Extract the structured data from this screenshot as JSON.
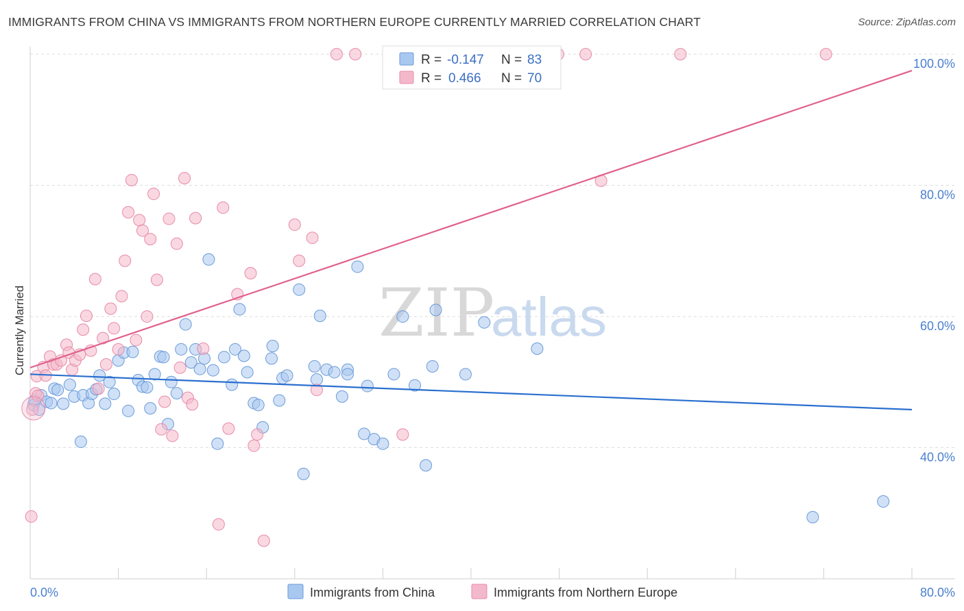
{
  "header": {
    "title": "IMMIGRANTS FROM CHINA VS IMMIGRANTS FROM NORTHERN EUROPE CURRENTLY MARRIED CORRELATION CHART",
    "source": "Source: ZipAtlas.com"
  },
  "watermark": {
    "zip": "ZIP",
    "atlas": "atlas"
  },
  "legend": {
    "items": [
      {
        "r_label": "R = ",
        "r_value": "-0.147",
        "n_label": "N = ",
        "n_value": "83",
        "color": "#a9c8f0"
      },
      {
        "r_label": "R = ",
        "r_value": "0.466",
        "n_label": "N = ",
        "n_value": "70",
        "color": "#f4b8cb"
      }
    ]
  },
  "chart_data": {
    "type": "scatter",
    "title": "IMMIGRANTS FROM CHINA VS IMMIGRANTS FROM NORTHERN EUROPE CURRENTLY MARRIED CORRELATION CHART",
    "xlabel": "",
    "ylabel": "Currently Married",
    "xlim": [
      0,
      80
    ],
    "ylim": [
      20,
      102
    ],
    "x_tick_labels": [
      "0.0%",
      "80.0%"
    ],
    "y_ticks": [
      40,
      60,
      80,
      100
    ],
    "y_tick_labels": [
      "40.0%",
      "60.0%",
      "80.0%",
      "100.0%"
    ],
    "grid": true,
    "legend_position": "top-center",
    "series": [
      {
        "name": "Immigrants from China",
        "color": "#a9c8f0",
        "stroke": "#6a9ad8",
        "trend_color": "#2a6fcf",
        "trend": {
          "x": [
            0,
            80
          ],
          "y": [
            51.2,
            45.8
          ]
        },
        "points": [
          [
            0.3,
            46.5
          ],
          [
            0.4,
            47.2
          ],
          [
            0.8,
            45.8
          ],
          [
            1.0,
            48.0
          ],
          [
            1.5,
            47.0
          ],
          [
            1.9,
            46.8
          ],
          [
            2.2,
            49.0
          ],
          [
            2.5,
            48.8
          ],
          [
            3.0,
            46.7
          ],
          [
            3.6,
            49.6
          ],
          [
            4.0,
            47.8
          ],
          [
            4.6,
            40.9
          ],
          [
            4.8,
            48.0
          ],
          [
            5.3,
            46.8
          ],
          [
            5.6,
            48.2
          ],
          [
            6.0,
            48.9
          ],
          [
            6.3,
            51.0
          ],
          [
            6.8,
            46.7
          ],
          [
            7.2,
            50.0
          ],
          [
            7.6,
            48.2
          ],
          [
            8.0,
            53.3
          ],
          [
            8.5,
            54.5
          ],
          [
            8.9,
            45.6
          ],
          [
            9.3,
            54.6
          ],
          [
            9.8,
            50.3
          ],
          [
            10.2,
            49.3
          ],
          [
            10.6,
            49.2
          ],
          [
            10.9,
            46.0
          ],
          [
            11.3,
            51.2
          ],
          [
            11.8,
            53.9
          ],
          [
            12.1,
            53.8
          ],
          [
            12.5,
            43.6
          ],
          [
            12.8,
            50.0
          ],
          [
            13.3,
            48.3
          ],
          [
            13.7,
            55.0
          ],
          [
            14.1,
            58.8
          ],
          [
            14.6,
            53.0
          ],
          [
            15.0,
            55.0
          ],
          [
            15.4,
            52.0
          ],
          [
            15.8,
            53.6
          ],
          [
            16.2,
            68.7
          ],
          [
            16.6,
            51.8
          ],
          [
            17.0,
            40.6
          ],
          [
            17.6,
            53.8
          ],
          [
            18.3,
            49.6
          ],
          [
            18.6,
            55.0
          ],
          [
            19.0,
            61.1
          ],
          [
            19.4,
            54.0
          ],
          [
            19.7,
            51.5
          ],
          [
            20.3,
            46.8
          ],
          [
            20.7,
            46.5
          ],
          [
            21.1,
            43.1
          ],
          [
            21.9,
            53.6
          ],
          [
            22.0,
            55.5
          ],
          [
            22.6,
            47.2
          ],
          [
            22.9,
            50.6
          ],
          [
            23.3,
            51.0
          ],
          [
            24.4,
            64.1
          ],
          [
            24.8,
            36.0
          ],
          [
            25.8,
            52.4
          ],
          [
            26.0,
            50.4
          ],
          [
            26.3,
            60.1
          ],
          [
            26.9,
            51.9
          ],
          [
            27.6,
            51.5
          ],
          [
            28.3,
            47.8
          ],
          [
            28.8,
            51.9
          ],
          [
            28.8,
            51.2
          ],
          [
            29.7,
            67.6
          ],
          [
            30.3,
            42.1
          ],
          [
            30.6,
            49.4
          ],
          [
            31.2,
            41.3
          ],
          [
            32.0,
            40.6
          ],
          [
            33.0,
            51.2
          ],
          [
            33.8,
            60.0
          ],
          [
            34.9,
            49.5
          ],
          [
            35.9,
            37.3
          ],
          [
            36.5,
            52.4
          ],
          [
            36.8,
            61.0
          ],
          [
            39.5,
            51.2
          ],
          [
            41.2,
            59.1
          ],
          [
            46.0,
            55.1
          ],
          [
            71.0,
            29.4
          ],
          [
            77.4,
            31.8
          ]
        ]
      },
      {
        "name": "Immigrants from Northern Europe",
        "color": "#f4b8cb",
        "stroke": "#e88aa8",
        "trend_color": "#e0608c",
        "trend": {
          "x": [
            0,
            80
          ],
          "y": [
            52.2,
            97.5
          ]
        },
        "points": [
          [
            0.2,
            45.8
          ],
          [
            0.5,
            48.3
          ],
          [
            0.6,
            50.9
          ],
          [
            0.7,
            47.9
          ],
          [
            1.2,
            52.3
          ],
          [
            1.4,
            51.0
          ],
          [
            1.8,
            53.9
          ],
          [
            2.1,
            52.7
          ],
          [
            2.4,
            52.7
          ],
          [
            2.8,
            53.3
          ],
          [
            3.3,
            55.7
          ],
          [
            3.5,
            54.5
          ],
          [
            3.8,
            51.9
          ],
          [
            4.1,
            53.3
          ],
          [
            4.5,
            54.2
          ],
          [
            4.8,
            58.0
          ],
          [
            5.1,
            60.1
          ],
          [
            5.5,
            54.8
          ],
          [
            5.9,
            65.7
          ],
          [
            6.2,
            49.0
          ],
          [
            6.6,
            56.7
          ],
          [
            6.9,
            52.7
          ],
          [
            7.3,
            61.2
          ],
          [
            7.6,
            58.2
          ],
          [
            8.0,
            55.0
          ],
          [
            8.3,
            63.1
          ],
          [
            8.6,
            68.5
          ],
          [
            8.9,
            75.9
          ],
          [
            9.2,
            80.8
          ],
          [
            9.6,
            56.4
          ],
          [
            9.9,
            74.7
          ],
          [
            10.2,
            73.1
          ],
          [
            10.6,
            60.0
          ],
          [
            10.9,
            71.8
          ],
          [
            11.2,
            78.7
          ],
          [
            11.5,
            65.6
          ],
          [
            11.9,
            42.8
          ],
          [
            12.2,
            47.0
          ],
          [
            12.6,
            74.9
          ],
          [
            12.9,
            41.8
          ],
          [
            13.3,
            71.1
          ],
          [
            13.6,
            52.2
          ],
          [
            14.0,
            81.1
          ],
          [
            14.3,
            47.6
          ],
          [
            14.7,
            46.6
          ],
          [
            15.0,
            75.0
          ],
          [
            15.7,
            55.1
          ],
          [
            17.1,
            28.3
          ],
          [
            17.5,
            76.6
          ],
          [
            18.0,
            42.9
          ],
          [
            18.8,
            63.4
          ],
          [
            20.0,
            66.6
          ],
          [
            20.3,
            40.3
          ],
          [
            20.6,
            42.0
          ],
          [
            21.2,
            25.8
          ],
          [
            24.0,
            74.0
          ],
          [
            24.4,
            68.5
          ],
          [
            25.6,
            72.0
          ],
          [
            26.0,
            48.8
          ],
          [
            27.8,
            100.0
          ],
          [
            29.5,
            100.0
          ],
          [
            33.8,
            42.0
          ],
          [
            36.0,
            100.0
          ],
          [
            39.4,
            100.0
          ],
          [
            47.9,
            100.0
          ],
          [
            50.4,
            100.0
          ],
          [
            51.8,
            80.7
          ],
          [
            59.0,
            100.0
          ],
          [
            72.2,
            100.0
          ],
          [
            0.1,
            29.5
          ]
        ]
      }
    ]
  },
  "bottom_legend": {
    "items": [
      {
        "label": "Immigrants from China",
        "color": "#a9c8f0"
      },
      {
        "label": "Immigrants from Northern Europe",
        "color": "#f4b8cb"
      }
    ]
  }
}
